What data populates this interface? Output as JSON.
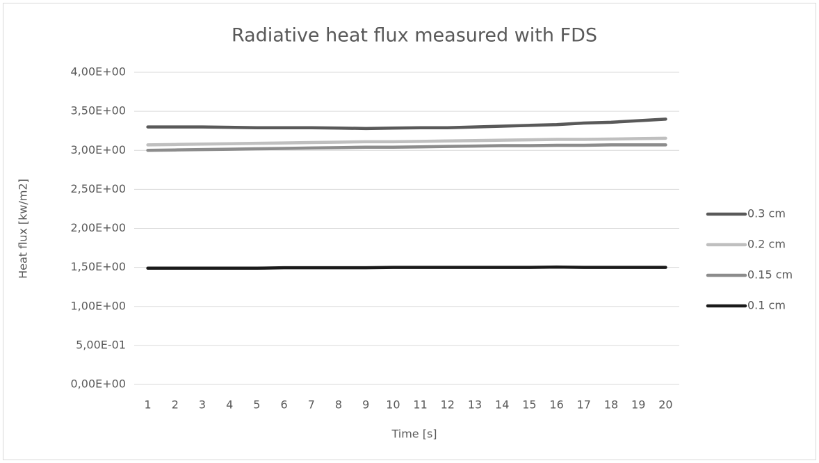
{
  "chart_data": {
    "type": "line",
    "title": "Radiative heat flux measured with FDS",
    "x_label": "Time [s]",
    "y_label": "Heat flux [kw/m2]",
    "categories": [
      "1",
      "2",
      "3",
      "4",
      "5",
      "6",
      "7",
      "8",
      "9",
      "10",
      "11",
      "12",
      "13",
      "14",
      "15",
      "16",
      "17",
      "18",
      "19",
      "20"
    ],
    "series": [
      {
        "name": "0.3 cm",
        "color": "#595959",
        "values": [
          3.3,
          3.3,
          3.3,
          3.295,
          3.29,
          3.29,
          3.29,
          3.285,
          3.28,
          3.285,
          3.29,
          3.29,
          3.3,
          3.31,
          3.32,
          3.33,
          3.35,
          3.36,
          3.38,
          3.4
        ]
      },
      {
        "name": "0.2 cm",
        "color": "#bfbfbf",
        "values": [
          3.07,
          3.075,
          3.08,
          3.085,
          3.09,
          3.095,
          3.1,
          3.105,
          3.11,
          3.11,
          3.115,
          3.12,
          3.125,
          3.13,
          3.135,
          3.14,
          3.14,
          3.145,
          3.15,
          3.155
        ]
      },
      {
        "name": "0.15 cm",
        "color": "#8c8c8c",
        "values": [
          3.0,
          3.005,
          3.01,
          3.015,
          3.02,
          3.025,
          3.03,
          3.035,
          3.04,
          3.04,
          3.045,
          3.05,
          3.055,
          3.06,
          3.06,
          3.065,
          3.065,
          3.07,
          3.07,
          3.07
        ]
      },
      {
        "name": "0.1 cm",
        "color": "#1a1a1a",
        "values": [
          1.49,
          1.49,
          1.49,
          1.49,
          1.49,
          1.495,
          1.495,
          1.495,
          1.495,
          1.5,
          1.5,
          1.5,
          1.5,
          1.5,
          1.5,
          1.505,
          1.5,
          1.5,
          1.5,
          1.5
        ]
      }
    ],
    "ylim": [
      0,
      4
    ],
    "yticks": [
      {
        "value": 0,
        "label": "0,00E+00"
      },
      {
        "value": 0.5,
        "label": "5,00E-01"
      },
      {
        "value": 1,
        "label": "1,00E+00"
      },
      {
        "value": 1.5,
        "label": "1,50E+00"
      },
      {
        "value": 2,
        "label": "2,00E+00"
      },
      {
        "value": 2.5,
        "label": "2,50E+00"
      },
      {
        "value": 3,
        "label": "3,00E+00"
      },
      {
        "value": 3.5,
        "label": "3,50E+00"
      },
      {
        "value": 4,
        "label": "4,00E+00"
      }
    ],
    "grid": true,
    "legend": "right"
  }
}
